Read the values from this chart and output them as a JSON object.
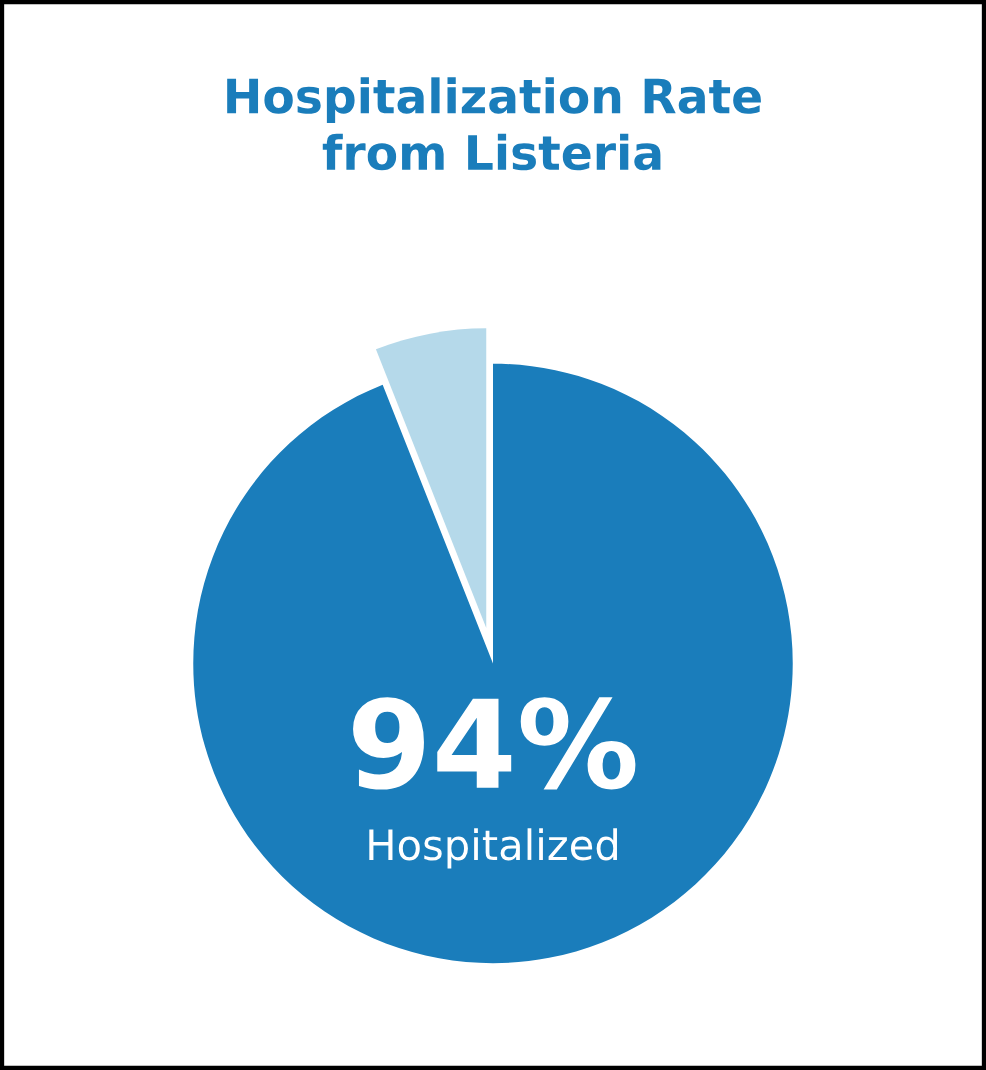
{
  "chart_data": {
    "type": "pie",
    "title": "Hospitalization Rate\nfrom Listeria",
    "categories": [
      "Hospitalized",
      null
    ],
    "values": [
      94,
      6
    ],
    "value_labels": [
      "94%",
      null
    ],
    "colors": [
      "#1a7dbb",
      "#b5d9ea"
    ],
    "legend": false
  }
}
